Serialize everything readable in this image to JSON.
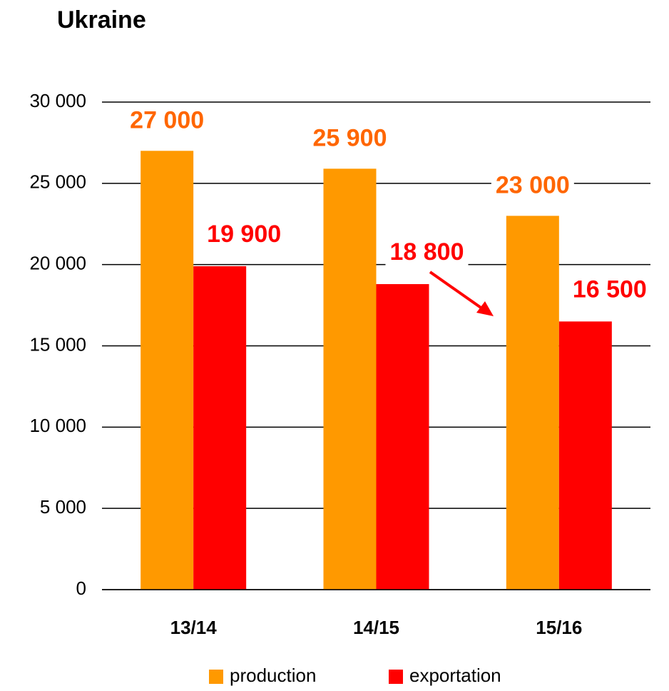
{
  "chart_data": {
    "type": "bar",
    "title": "Ukraine",
    "categories": [
      "13/14",
      "14/15",
      "15/16"
    ],
    "series": [
      {
        "name": "production",
        "color": "#FF9900",
        "label_color": "#FF6600",
        "values": [
          27000,
          25900,
          23000
        ],
        "value_labels": [
          "27 000",
          "25 900",
          "23 000"
        ]
      },
      {
        "name": "exportation",
        "color": "#FF0000",
        "label_color": "#FF0000",
        "values": [
          19900,
          18800,
          16500
        ],
        "value_labels": [
          "19 900",
          "18 800",
          "16 500"
        ]
      }
    ],
    "ylim": [
      0,
      30000
    ],
    "yticks": [
      {
        "value": 0,
        "label": "0"
      },
      {
        "value": 5000,
        "label": "5 000"
      },
      {
        "value": 10000,
        "label": "10 000"
      },
      {
        "value": 15000,
        "label": "15 000"
      },
      {
        "value": 20000,
        "label": "20 000"
      },
      {
        "value": 25000,
        "label": "25 000"
      },
      {
        "value": 30000,
        "label": "30 000"
      }
    ],
    "grid": true,
    "legend": "bottom"
  }
}
